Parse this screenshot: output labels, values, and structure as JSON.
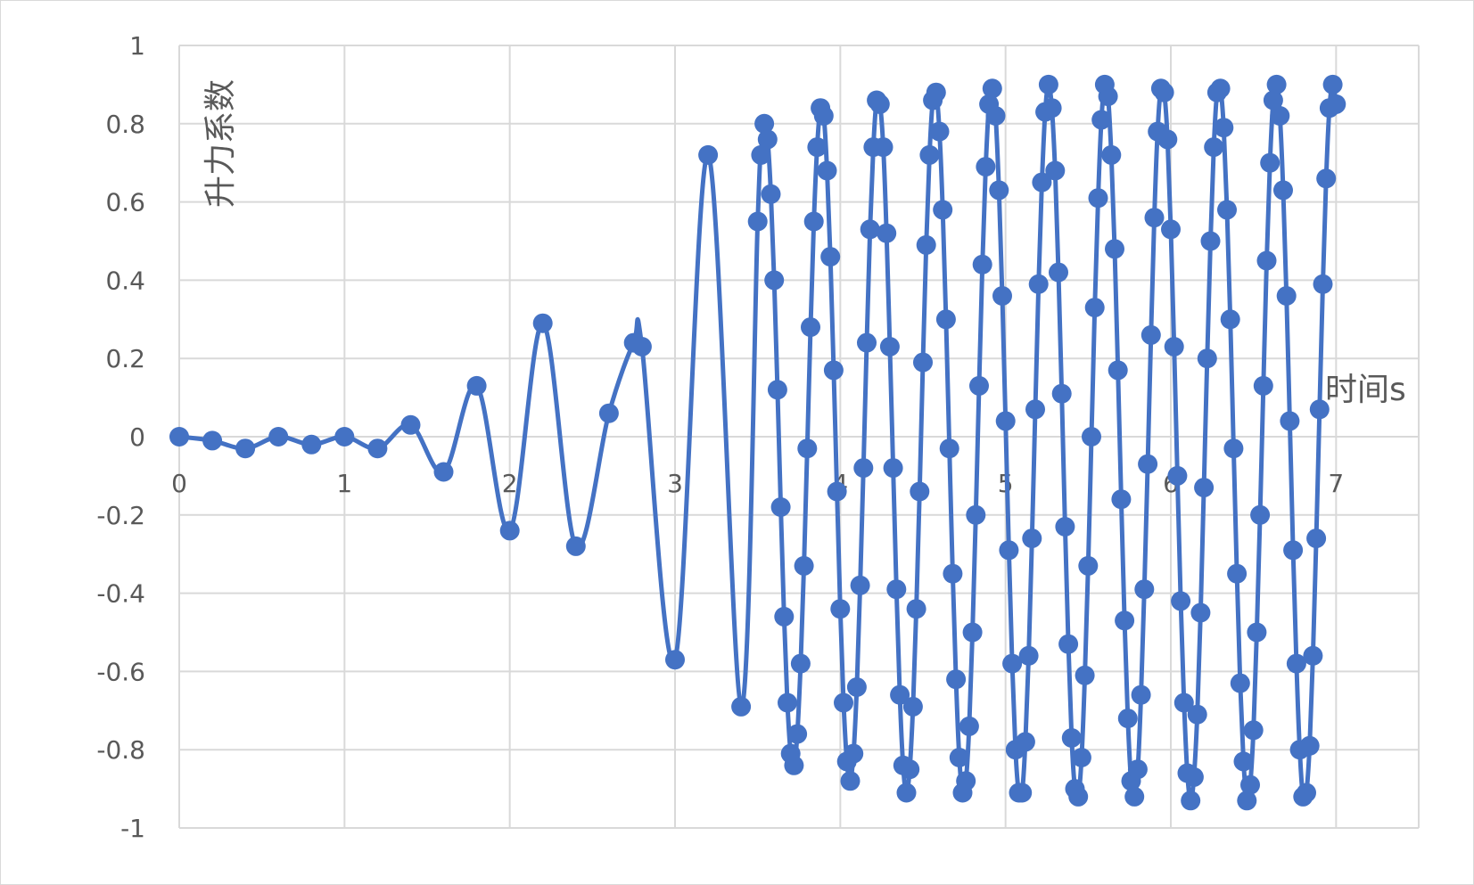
{
  "chart_data": {
    "type": "line",
    "title": "",
    "xlabel": "时间s",
    "ylabel": "升力系数",
    "xlim": [
      0,
      7.5
    ],
    "ylim": [
      -1,
      1
    ],
    "x_ticks": [
      "0",
      "1",
      "2",
      "3",
      "4",
      "5",
      "6",
      "7"
    ],
    "y_ticks": [
      "1",
      "0.8",
      "0.6",
      "0.4",
      "0.2",
      "0",
      "-0.2",
      "-0.4",
      "-0.6",
      "-0.8",
      "-1"
    ],
    "grid": true,
    "legend": "none",
    "series_color": "#4472c4",
    "grid_color": "#d9d9d9",
    "text_color": "#595959",
    "series": [
      {
        "x": [
          0,
          0.2,
          0.4,
          0.6,
          0.8,
          1.0,
          1.2,
          1.4,
          1.6,
          1.8,
          2.0,
          2.2,
          2.4,
          2.6,
          2.75,
          2.8,
          3.0,
          3.2,
          3.4,
          3.5,
          3.52,
          3.54,
          3.56,
          3.58,
          3.6,
          3.62,
          3.64,
          3.66,
          3.68,
          3.7,
          3.72,
          3.74,
          3.76,
          3.78,
          3.8,
          3.82,
          3.84,
          3.86,
          3.88,
          3.9,
          3.92,
          3.94,
          3.96,
          3.98,
          4.0,
          4.02,
          4.04,
          4.06,
          4.08,
          4.1,
          4.12,
          4.14,
          4.16,
          4.18,
          4.2,
          4.22,
          4.24,
          4.26,
          4.28,
          4.3,
          4.32,
          4.34,
          4.36,
          4.38,
          4.4,
          4.42,
          4.44,
          4.46,
          4.48,
          4.5,
          4.52,
          4.54,
          4.56,
          4.58,
          4.6,
          4.62,
          4.64,
          4.66,
          4.68,
          4.7,
          4.72,
          4.74,
          4.76,
          4.78,
          4.8,
          4.82,
          4.84,
          4.86,
          4.88,
          4.9,
          4.92,
          4.94,
          4.96,
          4.98,
          5.0,
          5.02,
          5.04,
          5.06,
          5.08,
          5.1,
          5.12,
          5.14,
          5.16,
          5.18,
          5.2,
          5.22,
          5.24,
          5.26,
          5.28,
          5.3,
          5.32,
          5.34,
          5.36,
          5.38,
          5.4,
          5.42,
          5.44,
          5.46,
          5.48,
          5.5,
          5.52,
          5.54,
          5.56,
          5.58,
          5.6,
          5.62,
          5.64,
          5.66,
          5.68,
          5.7,
          5.72,
          5.74,
          5.76,
          5.78,
          5.8,
          5.82,
          5.84,
          5.86,
          5.88,
          5.9,
          5.92,
          5.94,
          5.96,
          5.98,
          6.0,
          6.02,
          6.04,
          6.06,
          6.08,
          6.1,
          6.12,
          6.14,
          6.16,
          6.18,
          6.2,
          6.22,
          6.24,
          6.26,
          6.28,
          6.3,
          6.32,
          6.34,
          6.36,
          6.38,
          6.4,
          6.42,
          6.44,
          6.46,
          6.48,
          6.5,
          6.52,
          6.54,
          6.56,
          6.58,
          6.6,
          6.62,
          6.64,
          6.66,
          6.68,
          6.7,
          6.72,
          6.74,
          6.76,
          6.78,
          6.8,
          6.82,
          6.84,
          6.86,
          6.88,
          6.9,
          6.92,
          6.94,
          6.96,
          6.98,
          7.0
        ],
        "values": [
          0,
          -0.01,
          -0.03,
          0.0,
          -0.02,
          0.0,
          -0.03,
          0.03,
          -0.09,
          0.13,
          -0.24,
          0.29,
          -0.28,
          0.06,
          0.24,
          0.23,
          -0.57,
          0.72,
          -0.69,
          0.55,
          0.72,
          0.8,
          0.76,
          0.62,
          0.4,
          0.12,
          -0.18,
          -0.46,
          -0.68,
          -0.81,
          -0.84,
          -0.76,
          -0.58,
          -0.33,
          -0.03,
          0.28,
          0.55,
          0.74,
          0.84,
          0.82,
          0.68,
          0.46,
          0.17,
          -0.14,
          -0.44,
          -0.68,
          -0.83,
          -0.88,
          -0.81,
          -0.64,
          -0.38,
          -0.08,
          0.24,
          0.53,
          0.74,
          0.86,
          0.85,
          0.74,
          0.52,
          0.23,
          -0.08,
          -0.39,
          -0.66,
          -0.84,
          -0.91,
          -0.85,
          -0.69,
          -0.44,
          -0.14,
          0.19,
          0.49,
          0.72,
          0.86,
          0.88,
          0.78,
          0.58,
          0.3,
          -0.03,
          -0.35,
          -0.62,
          -0.82,
          -0.91,
          -0.88,
          -0.74,
          -0.5,
          -0.2,
          0.13,
          0.44,
          0.69,
          0.85,
          0.89,
          0.82,
          0.63,
          0.36,
          0.04,
          -0.29,
          -0.58,
          -0.8,
          -0.91,
          -0.91,
          -0.78,
          -0.56,
          -0.26,
          0.07,
          0.39,
          0.65,
          0.83,
          0.9,
          0.84,
          0.68,
          0.42,
          0.11,
          -0.23,
          -0.53,
          -0.77,
          -0.9,
          -0.92,
          -0.82,
          -0.61,
          -0.33,
          0.0,
          0.33,
          0.61,
          0.81,
          0.9,
          0.87,
          0.72,
          0.48,
          0.17,
          -0.16,
          -0.47,
          -0.72,
          -0.88,
          -0.92,
          -0.85,
          -0.66,
          -0.39,
          -0.07,
          0.26,
          0.56,
          0.78,
          0.89,
          0.88,
          0.76,
          0.53,
          0.23,
          -0.1,
          -0.42,
          -0.68,
          -0.86,
          -0.93,
          -0.87,
          -0.71,
          -0.45,
          -0.13,
          0.2,
          0.5,
          0.74,
          0.88,
          0.89,
          0.79,
          0.58,
          0.3,
          -0.03,
          -0.35,
          -0.63,
          -0.83,
          -0.93,
          -0.89,
          -0.75,
          -0.5,
          -0.2,
          0.13,
          0.45,
          0.7,
          0.86,
          0.9,
          0.82,
          0.63,
          0.36,
          0.04,
          -0.29,
          -0.58,
          -0.8,
          -0.92,
          -0.91,
          -0.79,
          -0.56,
          -0.26,
          0.07,
          0.39,
          0.66,
          0.84,
          0.9,
          0.85
        ]
      }
    ]
  }
}
